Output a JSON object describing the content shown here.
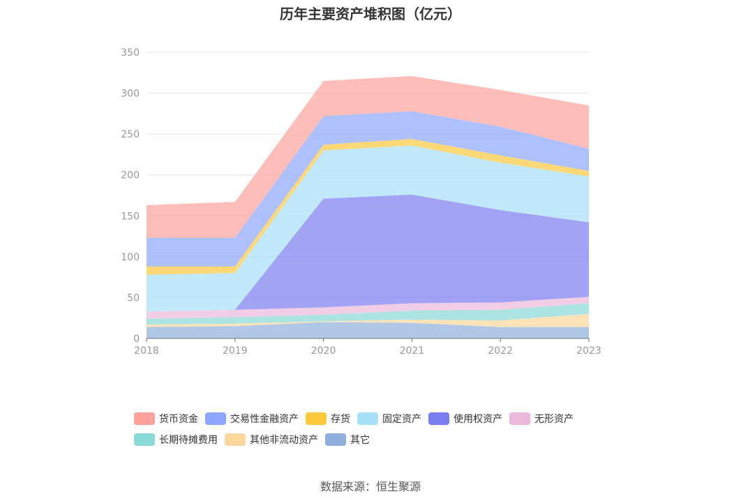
{
  "chart_data": {
    "type": "area",
    "stacked": true,
    "title": "历年主要资产堆积图（亿元）",
    "x": [
      "2018",
      "2019",
      "2020",
      "2021",
      "2022",
      "2023"
    ],
    "ylim": [
      0,
      350
    ],
    "yticks": [
      0,
      50,
      100,
      150,
      200,
      250,
      300,
      350
    ],
    "grid": true,
    "legend_position": "bottom",
    "series": [
      {
        "name": "其它",
        "color": "#8fb0dc",
        "values": [
          14,
          15,
          20,
          19,
          14,
          14
        ]
      },
      {
        "name": "其他非流动资产",
        "color": "#fdd79b",
        "values": [
          3,
          3,
          1,
          4,
          8,
          16
        ]
      },
      {
        "name": "长期待摊费用",
        "color": "#89d9d7",
        "values": [
          7,
          8,
          8,
          11,
          13,
          13
        ]
      },
      {
        "name": "无形资产",
        "color": "#ebb9db",
        "values": [
          9,
          9,
          9,
          9,
          9,
          8
        ]
      },
      {
        "name": "使用权资产",
        "color": "#7b7cf0",
        "values": [
          0,
          0,
          133,
          133,
          113,
          91
        ]
      },
      {
        "name": "固定资产",
        "color": "#a6e0f9",
        "values": [
          45,
          45,
          59,
          60,
          58,
          56
        ]
      },
      {
        "name": "存货",
        "color": "#fcc83c",
        "values": [
          10,
          8,
          7,
          8,
          9,
          7
        ]
      },
      {
        "name": "交易性金融资产",
        "color": "#8ba6fc",
        "values": [
          35,
          35,
          35,
          34,
          35,
          27
        ]
      },
      {
        "name": "货币资金",
        "color": "#fca29b",
        "values": [
          40,
          44,
          43,
          43,
          45,
          53
        ]
      }
    ],
    "legend_order": [
      "货币资金",
      "交易性金融资产",
      "存货",
      "固定资产",
      "使用权资产",
      "无形资产",
      "长期待摊费用",
      "其他非流动资产",
      "其它"
    ]
  },
  "source": "数据来源：恒生聚源"
}
